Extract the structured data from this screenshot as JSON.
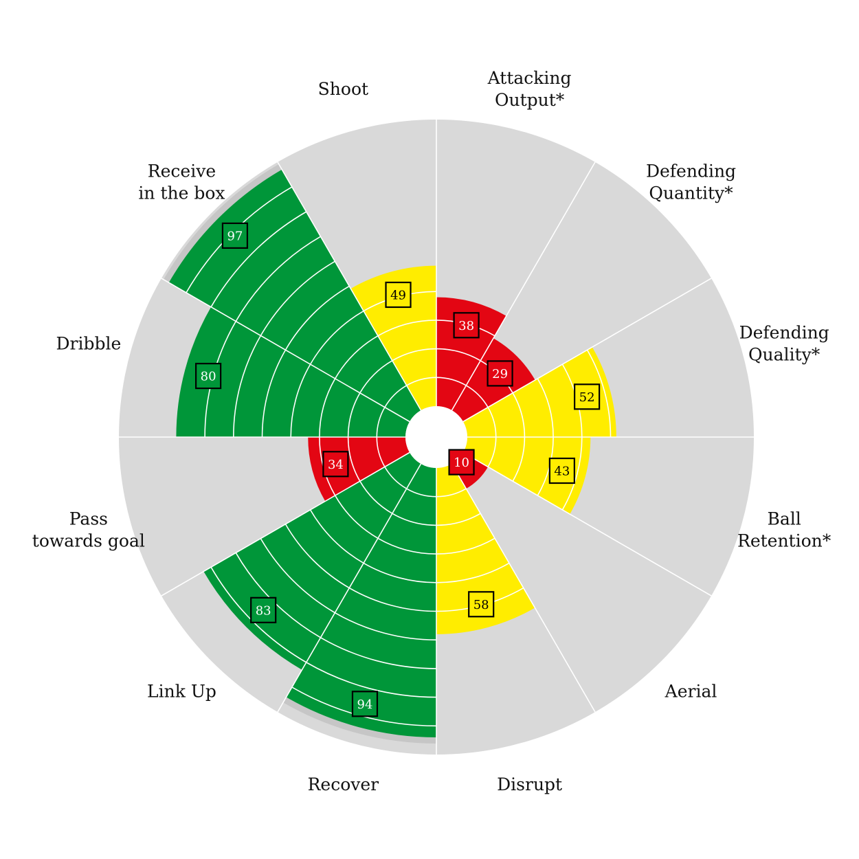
{
  "chart_data": {
    "type": "polar-bar",
    "title": "",
    "scale_max": 100,
    "gridline_step": 10,
    "categories": [
      {
        "label_lines": [
          "Attacking",
          "Output*"
        ],
        "value": 38
      },
      {
        "label_lines": [
          "Defending",
          "Quantity*"
        ],
        "value": 29
      },
      {
        "label_lines": [
          "Defending",
          "Quality*"
        ],
        "value": 52
      },
      {
        "label_lines": [
          "Ball",
          "Retention*"
        ],
        "value": 43
      },
      {
        "label_lines": [
          "Aerial"
        ],
        "value": 10
      },
      {
        "label_lines": [
          "Disrupt"
        ],
        "value": 58
      },
      {
        "label_lines": [
          "Recover"
        ],
        "value": 94
      },
      {
        "label_lines": [
          "Link Up"
        ],
        "value": 83
      },
      {
        "label_lines": [
          "Pass",
          "towards goal"
        ],
        "value": 34
      },
      {
        "label_lines": [
          "Dribble"
        ],
        "value": 80
      },
      {
        "label_lines": [
          "Receive",
          "in the box"
        ],
        "value": 97
      },
      {
        "label_lines": [
          "Shoot"
        ],
        "value": 49
      }
    ],
    "color_bands": [
      {
        "max": 40,
        "color": "#e30613",
        "text": "#ffffff"
      },
      {
        "max": 60,
        "color": "#ffed00",
        "text": "#000000"
      },
      {
        "max": 100,
        "color": "#009639",
        "text": "#ffffff"
      }
    ],
    "background_color": "#d9d9d9",
    "over_highlight_color": "#c6c6c6"
  }
}
